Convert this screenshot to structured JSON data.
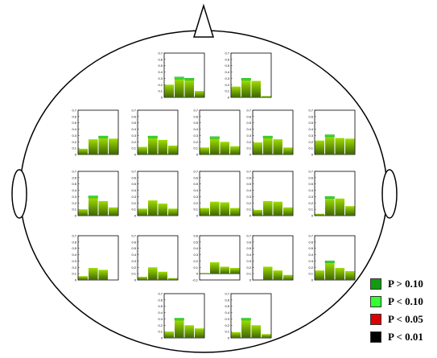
{
  "chart_data": {
    "type": "bar",
    "description_free": true,
    "yticks": [
      "0",
      "0.1",
      "0.2",
      "0.3",
      "0.4",
      "0.5",
      "0.6",
      "0.7"
    ],
    "ylim": [
      0,
      0.7
    ],
    "neg_yticks": [
      "0.6",
      "0.5",
      "0.4",
      "0.3",
      "0.2",
      "0.1",
      "0",
      "-0.1"
    ],
    "neg_ylim": [
      -0.1,
      0.6
    ],
    "bars_per_panel": 4,
    "panels": [
      {
        "id": "fp1",
        "row": 0,
        "col": 0,
        "values": [
          0.2,
          0.29,
          0.27,
          0.1
        ],
        "sig": [
          0,
          1,
          1,
          0
        ]
      },
      {
        "id": "fp2",
        "row": 0,
        "col": 1,
        "values": [
          0.17,
          0.27,
          0.26,
          0.02
        ],
        "sig": [
          0,
          1,
          0,
          0
        ]
      },
      {
        "id": "f7",
        "row": 1,
        "col": 0,
        "values": [
          0.09,
          0.24,
          0.26,
          0.25
        ],
        "sig": [
          0,
          0,
          1,
          0
        ]
      },
      {
        "id": "f3",
        "row": 1,
        "col": 1,
        "values": [
          0.12,
          0.26,
          0.23,
          0.14
        ],
        "sig": [
          0,
          1,
          0,
          0
        ]
      },
      {
        "id": "fz",
        "row": 1,
        "col": 2,
        "values": [
          0.11,
          0.25,
          0.2,
          0.13
        ],
        "sig": [
          0,
          1,
          0,
          0
        ]
      },
      {
        "id": "f4",
        "row": 1,
        "col": 3,
        "values": [
          0.19,
          0.26,
          0.24,
          0.11
        ],
        "sig": [
          0,
          1,
          0,
          0
        ]
      },
      {
        "id": "f8",
        "row": 1,
        "col": 4,
        "values": [
          0.22,
          0.28,
          0.26,
          0.25
        ],
        "sig": [
          0,
          1,
          0,
          0
        ]
      },
      {
        "id": "t3",
        "row": 2,
        "col": 0,
        "values": [
          0.1,
          0.28,
          0.23,
          0.13
        ],
        "sig": [
          0,
          1,
          0,
          0
        ]
      },
      {
        "id": "c3",
        "row": 2,
        "col": 1,
        "values": [
          0.11,
          0.24,
          0.19,
          0.11
        ],
        "sig": [
          0,
          0,
          0,
          0
        ]
      },
      {
        "id": "cz",
        "row": 2,
        "col": 2,
        "values": [
          0.12,
          0.22,
          0.21,
          0.12
        ],
        "sig": [
          0,
          0,
          0,
          0
        ]
      },
      {
        "id": "c4",
        "row": 2,
        "col": 3,
        "values": [
          0.09,
          0.23,
          0.22,
          0.13
        ],
        "sig": [
          0,
          0,
          0,
          0
        ]
      },
      {
        "id": "t4",
        "row": 2,
        "col": 4,
        "values": [
          0.03,
          0.27,
          0.27,
          0.15
        ],
        "sig": [
          0,
          1,
          0,
          0
        ]
      },
      {
        "id": "t5",
        "row": 3,
        "col": 0,
        "values": [
          0.06,
          0.19,
          0.16,
          0.01
        ],
        "sig": [
          0,
          0,
          0,
          0
        ]
      },
      {
        "id": "p3",
        "row": 3,
        "col": 1,
        "values": [
          0.05,
          0.2,
          0.13,
          0.03
        ],
        "sig": [
          0,
          0,
          0,
          0
        ]
      },
      {
        "id": "pz",
        "row": 3,
        "col": 2,
        "values": [
          0.01,
          0.18,
          0.11,
          0.09
        ],
        "sig": [
          0,
          0,
          0,
          0
        ],
        "negative_axis": true
      },
      {
        "id": "p4",
        "row": 3,
        "col": 3,
        "values": [
          0.01,
          0.21,
          0.15,
          0.08
        ],
        "sig": [
          0,
          0,
          0,
          0
        ]
      },
      {
        "id": "t6",
        "row": 3,
        "col": 4,
        "values": [
          0.15,
          0.27,
          0.19,
          0.14
        ],
        "sig": [
          0,
          1,
          0,
          0
        ]
      },
      {
        "id": "o1",
        "row": 4,
        "col": 0,
        "values": [
          0.1,
          0.28,
          0.2,
          0.15
        ],
        "sig": [
          0,
          1,
          0,
          0
        ]
      },
      {
        "id": "o2",
        "row": 4,
        "col": 1,
        "values": [
          0.09,
          0.28,
          0.2,
          0.06
        ],
        "sig": [
          0,
          1,
          0,
          0
        ]
      }
    ]
  },
  "colors": {
    "bar_top": "#9edd00",
    "bar_bottom": "#3f6600",
    "sig_cap": "#33dd33",
    "sig_cap_dark": "#129a12",
    "frame": "#000000"
  },
  "legend": [
    {
      "label": "P > 0.10",
      "color": "#129a12"
    },
    {
      "label": "P < 0.10",
      "color": "#33ff33"
    },
    {
      "label": "P < 0.05",
      "color": "#dd0000"
    },
    {
      "label": "P < 0.01",
      "color": "#000000"
    }
  ]
}
